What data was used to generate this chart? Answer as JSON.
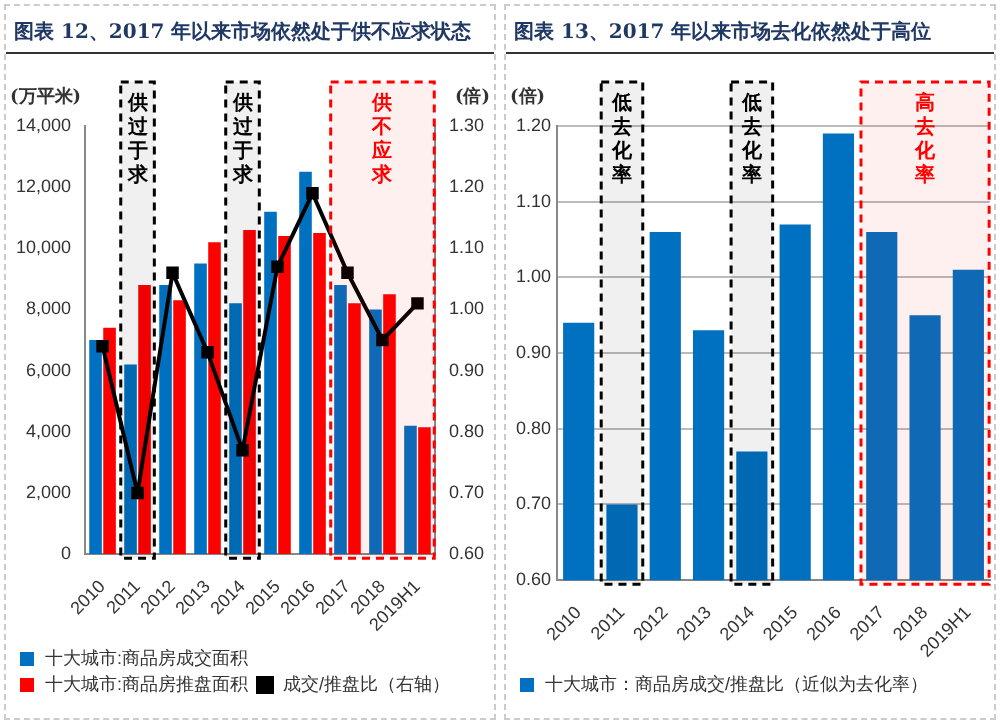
{
  "chart_data": [
    {
      "type": "bar",
      "title": "图表 12、2017 年以来市场依然处于供不应求状态",
      "ylabel": "(万平米)",
      "y2label": "(倍)",
      "categories": [
        "2010",
        "2011",
        "2012",
        "2013",
        "2014",
        "2015",
        "2016",
        "2017",
        "2018",
        "2019H1"
      ],
      "series": [
        {
          "name": "十大城市:商品房成交面积",
          "type": "bar",
          "color": "#0070c0",
          "values": [
            7000,
            6200,
            8800,
            9500,
            8200,
            11200,
            12500,
            8800,
            8000,
            4200
          ]
        },
        {
          "name": "十大城市:商品房推盘面积",
          "type": "bar",
          "color": "#ff0000",
          "values": [
            7400,
            8800,
            8300,
            10200,
            10600,
            10400,
            10500,
            8200,
            8500,
            4150
          ]
        },
        {
          "name": "成交/推盘比（右轴）",
          "type": "line",
          "axis": "y2",
          "color": "#000000",
          "marker": "square",
          "values": [
            0.94,
            0.7,
            1.06,
            0.93,
            0.77,
            1.07,
            1.19,
            1.06,
            0.95,
            1.01
          ]
        }
      ],
      "ylim": [
        0,
        14000
      ],
      "yticks": [
        0,
        {
          "value": 2000,
          "label": "2,000"
        },
        {
          "value": 4000,
          "label": "4,000"
        },
        {
          "value": 6000,
          "label": "6,000"
        },
        {
          "value": 8000,
          "label": "8,000"
        },
        {
          "value": 10000,
          "label": "10,000"
        },
        {
          "value": 12000,
          "label": "12,000"
        },
        {
          "value": 14000,
          "label": "14,000"
        }
      ],
      "y2lim": [
        0.6,
        1.3
      ],
      "y2ticks": [
        {
          "value": 0.6,
          "label": "0.60"
        },
        {
          "value": 0.7,
          "label": "0.70"
        },
        {
          "value": 0.8,
          "label": "0.80"
        },
        {
          "value": 0.9,
          "label": "0.90"
        },
        {
          "value": 1.0,
          "label": "1.00"
        },
        {
          "value": 1.1,
          "label": "1.10"
        },
        {
          "value": 1.2,
          "label": "1.20"
        },
        {
          "value": 1.3,
          "label": "1.30"
        }
      ],
      "bands": [
        {
          "axis": "x",
          "from": "2011",
          "to": "2011",
          "label": "供过于求",
          "color": "#000000"
        },
        {
          "axis": "x",
          "from": "2014",
          "to": "2014",
          "label": "供过于求",
          "color": "#000000"
        },
        {
          "axis": "x",
          "from": "2017",
          "to": "2019H1",
          "label": "供不应求",
          "color": "#ff0000"
        }
      ],
      "grid": false,
      "legend": "bottom"
    },
    {
      "type": "bar",
      "title": "图表 13、2017 年以来市场去化依然处于高位",
      "ylabel": "(倍)",
      "categories": [
        "2010",
        "2011",
        "2012",
        "2013",
        "2014",
        "2015",
        "2016",
        "2017",
        "2018",
        "2019H1"
      ],
      "series": [
        {
          "name": "十大城市：商品房成交/推盘比（近似为去化率）",
          "color": "#0070c0",
          "values": [
            0.94,
            0.7,
            1.06,
            0.93,
            0.77,
            1.07,
            1.19,
            1.06,
            0.95,
            1.01
          ]
        }
      ],
      "ylim": [
        0.6,
        1.2
      ],
      "yticks": [
        {
          "value": 0.6,
          "label": "0.60"
        },
        {
          "value": 0.7,
          "label": "0.70"
        },
        {
          "value": 0.8,
          "label": "0.80"
        },
        {
          "value": 0.9,
          "label": "0.90"
        },
        {
          "value": 1.0,
          "label": "1.00"
        },
        {
          "value": 1.1,
          "label": "1.10"
        },
        {
          "value": 1.2,
          "label": "1.20"
        }
      ],
      "bands": [
        {
          "axis": "x",
          "from": "2011",
          "to": "2011",
          "label": "低去化率",
          "color": "#000000"
        },
        {
          "axis": "x",
          "from": "2014",
          "to": "2014",
          "label": "低去化率",
          "color": "#000000"
        },
        {
          "axis": "x",
          "from": "2017",
          "to": "2019H1",
          "label": "高去化率",
          "color": "#ff0000"
        }
      ],
      "grid": "y",
      "legend": "bottom"
    }
  ]
}
